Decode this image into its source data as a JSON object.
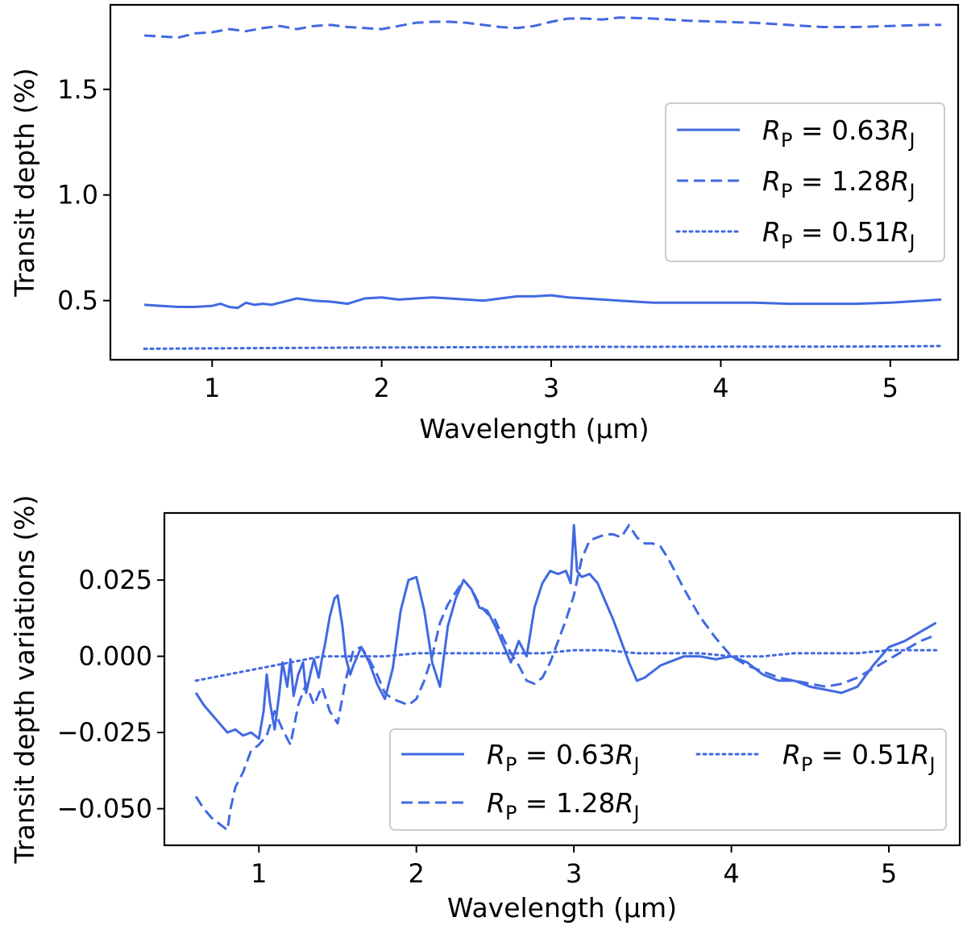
{
  "chart_data": [
    {
      "type": "line",
      "xlabel": "Wavelength (μm)",
      "ylabel": "Transit depth (%)",
      "xlim": [
        0.4,
        5.4
      ],
      "ylim": [
        0.22,
        1.9
      ],
      "xticks": [
        1,
        2,
        3,
        4,
        5
      ],
      "xtick_labels": [
        "1",
        "2",
        "3",
        "4",
        "5"
      ],
      "yticks": [
        0.5,
        1.0,
        1.5
      ],
      "ytick_labels": [
        "0.5",
        "1.0",
        "1.5"
      ],
      "grid": false,
      "legend_position": "center-right",
      "legend_ncol": 1,
      "series": [
        {
          "name": "RP = 0.63RJ",
          "name_parts": {
            "sym": "R",
            "sub": "P",
            "eq": " = 0.63",
            "sym2": "R",
            "sub2": "J"
          },
          "style": "solid",
          "color": "#4169e1",
          "x": [
            0.6,
            0.7,
            0.8,
            0.9,
            1.0,
            1.05,
            1.1,
            1.15,
            1.2,
            1.25,
            1.3,
            1.35,
            1.4,
            1.5,
            1.6,
            1.7,
            1.8,
            1.9,
            2.0,
            2.1,
            2.2,
            2.3,
            2.4,
            2.5,
            2.6,
            2.7,
            2.8,
            2.9,
            3.0,
            3.1,
            3.2,
            3.4,
            3.6,
            3.8,
            4.0,
            4.2,
            4.4,
            4.6,
            4.8,
            5.0,
            5.2,
            5.3
          ],
          "y": [
            0.48,
            0.475,
            0.47,
            0.47,
            0.475,
            0.485,
            0.47,
            0.465,
            0.49,
            0.48,
            0.485,
            0.48,
            0.49,
            0.51,
            0.5,
            0.495,
            0.485,
            0.51,
            0.515,
            0.505,
            0.51,
            0.515,
            0.51,
            0.505,
            0.5,
            0.51,
            0.52,
            0.52,
            0.525,
            0.515,
            0.51,
            0.5,
            0.49,
            0.49,
            0.49,
            0.49,
            0.485,
            0.485,
            0.485,
            0.49,
            0.5,
            0.505
          ]
        },
        {
          "name": "RP = 1.28RJ",
          "name_parts": {
            "sym": "R",
            "sub": "P",
            "eq": " = 1.28",
            "sym2": "R",
            "sub2": "J"
          },
          "style": "dashed",
          "color": "#4169e1",
          "x": [
            0.6,
            0.7,
            0.8,
            0.9,
            1.0,
            1.1,
            1.2,
            1.3,
            1.4,
            1.5,
            1.6,
            1.7,
            1.8,
            1.9,
            2.0,
            2.1,
            2.2,
            2.3,
            2.4,
            2.5,
            2.6,
            2.7,
            2.8,
            2.9,
            3.0,
            3.1,
            3.2,
            3.3,
            3.4,
            3.6,
            3.8,
            4.0,
            4.2,
            4.4,
            4.6,
            4.8,
            5.0,
            5.2,
            5.3
          ],
          "y": [
            1.755,
            1.75,
            1.745,
            1.765,
            1.77,
            1.785,
            1.775,
            1.79,
            1.8,
            1.785,
            1.8,
            1.805,
            1.795,
            1.79,
            1.785,
            1.8,
            1.815,
            1.82,
            1.82,
            1.815,
            1.805,
            1.795,
            1.79,
            1.8,
            1.82,
            1.835,
            1.835,
            1.83,
            1.84,
            1.835,
            1.825,
            1.82,
            1.815,
            1.805,
            1.795,
            1.795,
            1.8,
            1.805,
            1.805
          ]
        },
        {
          "name": "RP = 0.51RJ",
          "name_parts": {
            "sym": "R",
            "sub": "P",
            "eq": " = 0.51",
            "sym2": "R",
            "sub2": "J"
          },
          "style": "dotted",
          "color": "#4169e1",
          "x": [
            0.6,
            1.0,
            1.5,
            2.0,
            2.5,
            3.0,
            3.5,
            4.0,
            4.5,
            5.0,
            5.3
          ],
          "y": [
            0.272,
            0.274,
            0.276,
            0.278,
            0.279,
            0.281,
            0.281,
            0.282,
            0.282,
            0.283,
            0.285
          ]
        }
      ]
    },
    {
      "type": "line",
      "xlabel": "Wavelength (μm)",
      "ylabel": "Transit depth variations (%)",
      "xlim": [
        0.4,
        5.45
      ],
      "ylim": [
        -0.062,
        0.047
      ],
      "xticks": [
        1,
        2,
        3,
        4,
        5
      ],
      "xtick_labels": [
        "1",
        "2",
        "3",
        "4",
        "5"
      ],
      "yticks": [
        -0.05,
        -0.025,
        0.0,
        0.025
      ],
      "ytick_labels": [
        "−0.050",
        "−0.025",
        "0.000",
        "0.025"
      ],
      "grid": false,
      "legend_position": "lower-right",
      "legend_ncol": 2,
      "series": [
        {
          "name": "RP = 0.63RJ",
          "name_parts": {
            "sym": "R",
            "sub": "P",
            "eq": " = 0.63",
            "sym2": "R",
            "sub2": "J"
          },
          "style": "solid",
          "color": "#4169e1",
          "x": [
            0.6,
            0.65,
            0.7,
            0.75,
            0.8,
            0.85,
            0.9,
            0.95,
            1.0,
            1.03,
            1.05,
            1.07,
            1.1,
            1.13,
            1.15,
            1.18,
            1.2,
            1.22,
            1.25,
            1.28,
            1.3,
            1.33,
            1.35,
            1.38,
            1.4,
            1.42,
            1.45,
            1.48,
            1.5,
            1.53,
            1.55,
            1.58,
            1.6,
            1.65,
            1.7,
            1.75,
            1.8,
            1.85,
            1.9,
            1.95,
            2.0,
            2.05,
            2.1,
            2.15,
            2.2,
            2.25,
            2.3,
            2.35,
            2.4,
            2.45,
            2.5,
            2.55,
            2.6,
            2.65,
            2.7,
            2.75,
            2.8,
            2.85,
            2.9,
            2.95,
            2.98,
            3.0,
            3.02,
            3.05,
            3.1,
            3.15,
            3.2,
            3.25,
            3.3,
            3.35,
            3.4,
            3.45,
            3.5,
            3.55,
            3.6,
            3.7,
            3.8,
            3.9,
            4.0,
            4.1,
            4.2,
            4.3,
            4.4,
            4.5,
            4.6,
            4.7,
            4.8,
            4.9,
            5.0,
            5.1,
            5.2,
            5.3
          ],
          "y": [
            -0.012,
            -0.016,
            -0.019,
            -0.022,
            -0.025,
            -0.024,
            -0.026,
            -0.025,
            -0.027,
            -0.018,
            -0.006,
            -0.015,
            -0.024,
            -0.012,
            -0.002,
            -0.01,
            -0.001,
            -0.013,
            -0.006,
            -0.002,
            -0.012,
            -0.005,
            -0.001,
            -0.007,
            -0.001,
            0.004,
            0.013,
            0.019,
            0.02,
            0.01,
            0.0,
            -0.006,
            -0.003,
            0.003,
            -0.002,
            -0.009,
            -0.014,
            -0.004,
            0.015,
            0.025,
            0.026,
            0.015,
            -0.002,
            -0.01,
            0.01,
            0.019,
            0.025,
            0.022,
            0.016,
            0.015,
            0.01,
            0.004,
            -0.002,
            0.005,
            0.0,
            0.016,
            0.024,
            0.028,
            0.027,
            0.028,
            0.024,
            0.043,
            0.028,
            0.026,
            0.027,
            0.024,
            0.018,
            0.012,
            0.005,
            -0.002,
            -0.008,
            -0.007,
            -0.005,
            -0.003,
            -0.002,
            0.0,
            0.0,
            -0.001,
            0.0,
            -0.002,
            -0.006,
            -0.008,
            -0.008,
            -0.01,
            -0.011,
            -0.012,
            -0.01,
            -0.003,
            0.003,
            0.005,
            0.008,
            0.011
          ]
        },
        {
          "name": "RP = 1.28RJ",
          "name_parts": {
            "sym": "R",
            "sub": "P",
            "eq": " = 1.28",
            "sym2": "R",
            "sub2": "J"
          },
          "style": "dashed",
          "color": "#4169e1",
          "x": [
            0.6,
            0.65,
            0.7,
            0.75,
            0.8,
            0.82,
            0.85,
            0.9,
            0.95,
            1.0,
            1.05,
            1.1,
            1.15,
            1.2,
            1.25,
            1.3,
            1.35,
            1.4,
            1.45,
            1.5,
            1.55,
            1.6,
            1.65,
            1.7,
            1.75,
            1.8,
            1.85,
            1.9,
            1.95,
            2.0,
            2.05,
            2.1,
            2.15,
            2.2,
            2.25,
            2.3,
            2.35,
            2.4,
            2.45,
            2.5,
            2.55,
            2.6,
            2.65,
            2.7,
            2.75,
            2.8,
            2.85,
            2.9,
            2.95,
            3.0,
            3.05,
            3.1,
            3.15,
            3.2,
            3.25,
            3.3,
            3.35,
            3.4,
            3.45,
            3.5,
            3.55,
            3.6,
            3.7,
            3.8,
            3.9,
            4.0,
            4.1,
            4.2,
            4.3,
            4.4,
            4.5,
            4.6,
            4.7,
            4.8,
            4.9,
            5.0,
            5.1,
            5.2,
            5.3
          ],
          "y": [
            -0.046,
            -0.05,
            -0.053,
            -0.055,
            -0.057,
            -0.05,
            -0.043,
            -0.038,
            -0.031,
            -0.029,
            -0.026,
            -0.018,
            -0.024,
            -0.029,
            -0.016,
            -0.009,
            -0.016,
            -0.01,
            -0.018,
            -0.022,
            -0.008,
            0.002,
            0.003,
            -0.001,
            -0.006,
            -0.012,
            -0.014,
            -0.015,
            -0.016,
            -0.014,
            -0.008,
            0.0,
            0.011,
            0.017,
            0.021,
            0.025,
            0.022,
            0.017,
            0.014,
            0.012,
            0.006,
            0.001,
            -0.003,
            -0.008,
            -0.009,
            -0.007,
            -0.002,
            0.005,
            0.012,
            0.02,
            0.032,
            0.038,
            0.039,
            0.04,
            0.04,
            0.039,
            0.043,
            0.039,
            0.037,
            0.037,
            0.036,
            0.032,
            0.022,
            0.013,
            0.006,
            0.0,
            -0.003,
            -0.005,
            -0.007,
            -0.008,
            -0.009,
            -0.01,
            -0.009,
            -0.007,
            -0.004,
            -0.001,
            0.002,
            0.005,
            0.007
          ]
        },
        {
          "name": "RP = 0.51RJ",
          "name_parts": {
            "sym": "R",
            "sub": "P",
            "eq": " = 0.51",
            "sym2": "R",
            "sub2": "J"
          },
          "style": "dotted",
          "color": "#4169e1",
          "x": [
            0.6,
            0.7,
            0.8,
            0.9,
            1.0,
            1.1,
            1.2,
            1.3,
            1.4,
            1.5,
            1.6,
            1.8,
            2.0,
            2.2,
            2.4,
            2.6,
            2.8,
            3.0,
            3.2,
            3.4,
            3.6,
            3.8,
            4.0,
            4.2,
            4.4,
            4.6,
            4.8,
            5.0,
            5.2,
            5.3
          ],
          "y": [
            -0.008,
            -0.007,
            -0.006,
            -0.005,
            -0.004,
            -0.003,
            -0.002,
            -0.001,
            0.0,
            0.0,
            0.0,
            0.0,
            0.001,
            0.001,
            0.001,
            0.001,
            0.001,
            0.002,
            0.002,
            0.001,
            0.001,
            0.001,
            0.0,
            0.0,
            0.001,
            0.001,
            0.001,
            0.002,
            0.002,
            0.002
          ]
        }
      ]
    }
  ]
}
